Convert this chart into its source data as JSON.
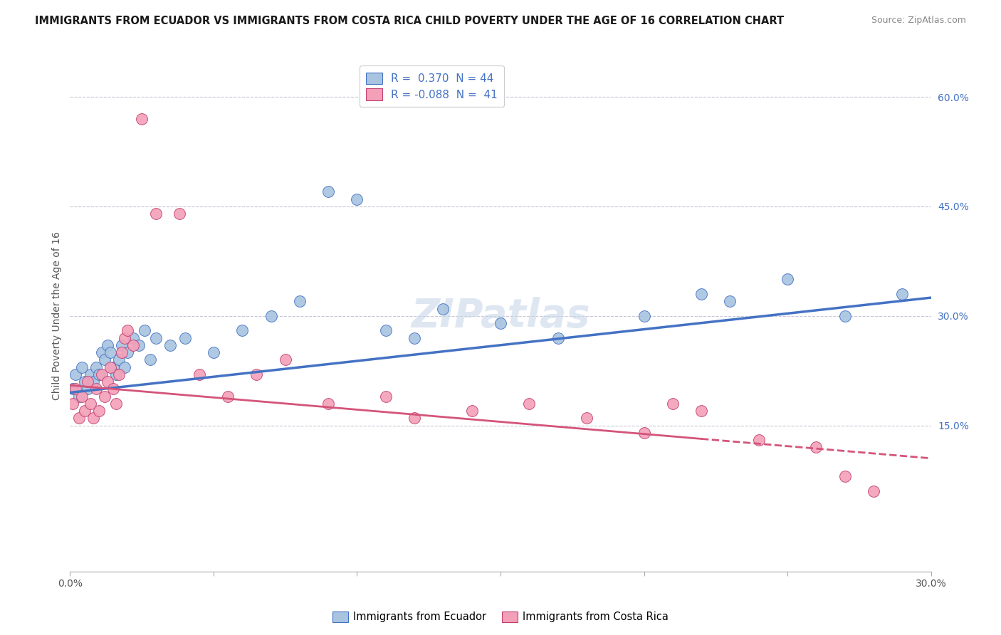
{
  "title": "IMMIGRANTS FROM ECUADOR VS IMMIGRANTS FROM COSTA RICA CHILD POVERTY UNDER THE AGE OF 16 CORRELATION CHART",
  "source": "Source: ZipAtlas.com",
  "ylabel": "Child Poverty Under the Age of 16",
  "right_yticks": [
    0.15,
    0.3,
    0.45,
    0.6
  ],
  "right_ytick_labels": [
    "15.0%",
    "30.0%",
    "45.0%",
    "60.0%"
  ],
  "watermark": "ZIPatlas",
  "legend_r_ecuador": "0.370",
  "legend_n_ecuador": "44",
  "legend_r_costarica": "-0.088",
  "legend_n_costarica": "41",
  "color_ecuador": "#a8c4e0",
  "color_costarica": "#f4a0b8",
  "line_color_ecuador": "#4472c4",
  "line_color_costarica": "#d4547a",
  "background_color": "#ffffff",
  "grid_color": "#c8c8d8",
  "xlim": [
    0.0,
    0.3
  ],
  "ylim": [
    -0.05,
    0.65
  ],
  "ecuador_line_x0": 0.0,
  "ecuador_line_y0": 0.195,
  "ecuador_line_x1": 0.3,
  "ecuador_line_y1": 0.325,
  "costarica_line_x0": 0.0,
  "costarica_line_y0": 0.205,
  "costarica_line_x1": 0.3,
  "costarica_line_y1": 0.105,
  "costarica_line_solid_end": 0.22,
  "ecuador_x": [
    0.001,
    0.002,
    0.003,
    0.004,
    0.005,
    0.006,
    0.007,
    0.008,
    0.009,
    0.01,
    0.011,
    0.012,
    0.013,
    0.014,
    0.015,
    0.016,
    0.017,
    0.018,
    0.019,
    0.02,
    0.022,
    0.024,
    0.026,
    0.028,
    0.03,
    0.035,
    0.04,
    0.05,
    0.06,
    0.07,
    0.08,
    0.09,
    0.1,
    0.11,
    0.12,
    0.13,
    0.15,
    0.17,
    0.2,
    0.22,
    0.23,
    0.25,
    0.27,
    0.29
  ],
  "ecuador_y": [
    0.2,
    0.22,
    0.19,
    0.23,
    0.21,
    0.2,
    0.22,
    0.21,
    0.23,
    0.22,
    0.25,
    0.24,
    0.26,
    0.25,
    0.23,
    0.22,
    0.24,
    0.26,
    0.23,
    0.25,
    0.27,
    0.26,
    0.28,
    0.24,
    0.27,
    0.26,
    0.27,
    0.25,
    0.28,
    0.3,
    0.32,
    0.47,
    0.46,
    0.28,
    0.27,
    0.31,
    0.29,
    0.27,
    0.3,
    0.33,
    0.32,
    0.35,
    0.3,
    0.33
  ],
  "costarica_x": [
    0.001,
    0.002,
    0.003,
    0.004,
    0.005,
    0.006,
    0.007,
    0.008,
    0.009,
    0.01,
    0.011,
    0.012,
    0.013,
    0.014,
    0.015,
    0.016,
    0.017,
    0.018,
    0.019,
    0.02,
    0.022,
    0.025,
    0.03,
    0.038,
    0.045,
    0.055,
    0.065,
    0.075,
    0.09,
    0.11,
    0.12,
    0.14,
    0.16,
    0.18,
    0.2,
    0.22,
    0.24,
    0.26,
    0.27,
    0.28,
    0.21
  ],
  "costarica_y": [
    0.18,
    0.2,
    0.16,
    0.19,
    0.17,
    0.21,
    0.18,
    0.16,
    0.2,
    0.17,
    0.22,
    0.19,
    0.21,
    0.23,
    0.2,
    0.18,
    0.22,
    0.25,
    0.27,
    0.28,
    0.26,
    0.57,
    0.44,
    0.44,
    0.22,
    0.19,
    0.22,
    0.24,
    0.18,
    0.19,
    0.16,
    0.17,
    0.18,
    0.16,
    0.14,
    0.17,
    0.13,
    0.12,
    0.08,
    0.06,
    0.18
  ],
  "xlabel_ticks": [
    0.0,
    0.05,
    0.1,
    0.15,
    0.2,
    0.25,
    0.3
  ],
  "xlabel_tick_labels": [
    "0.0%",
    "",
    "",
    "",
    "",
    "",
    "30.0%"
  ]
}
